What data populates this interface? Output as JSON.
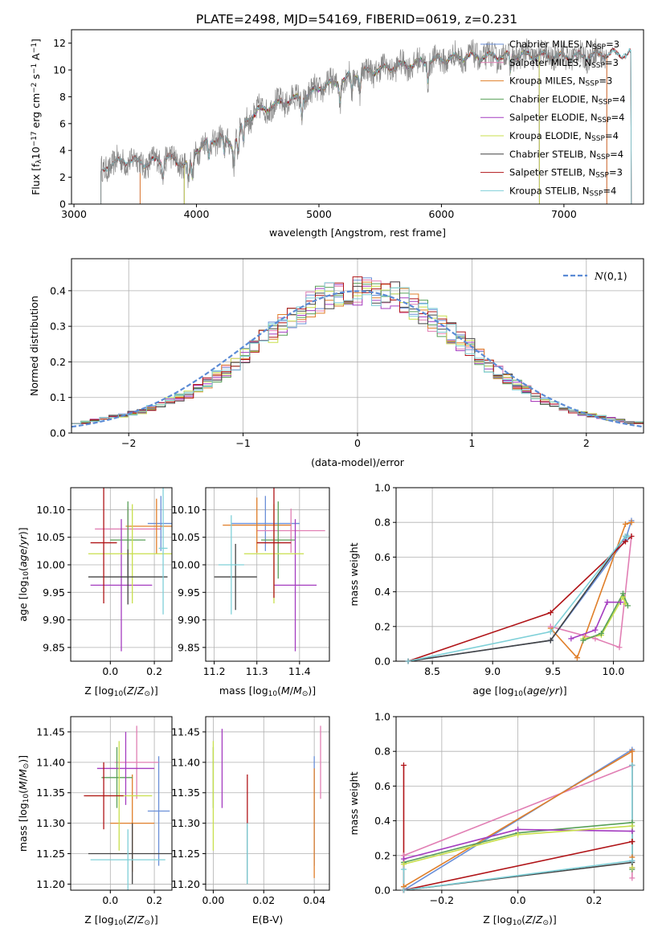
{
  "figure": {
    "title": "PLATE=2498, MJD=54169, FIBERID=0619, z=0.231",
    "colors": {
      "cha_miles": "#6a8fd8",
      "sal_miles": "#e17fb4",
      "kro_miles": "#e07f2a",
      "cha_elodie": "#58a058",
      "sal_elodie": "#a43cc0",
      "kro_elodie": "#c8df4c",
      "cha_stelib": "#444444",
      "sal_stelib": "#b01418",
      "kro_stelib": "#7fd0d8",
      "data": "#888888",
      "normal": "#5b8bd5",
      "grid": "#b0b0b0"
    }
  },
  "chart_data": [
    {
      "id": "spectrum",
      "type": "line",
      "title": "PLATE=2498, MJD=54169, FIBERID=0619, z=0.231",
      "xlabel": "wavelength [Angstrom, rest frame]",
      "ylabel_parts": [
        "Flux [f",
        "λ",
        "10",
        "−17",
        " erg cm",
        "−2",
        " s",
        "−1",
        " A",
        "−1",
        "]"
      ],
      "xlim": [
        2980,
        7650
      ],
      "ylim": [
        0,
        13
      ],
      "xticks": [
        3000,
        4000,
        5000,
        6000,
        7000
      ],
      "yticks": [
        0,
        2,
        4,
        6,
        8,
        10,
        12
      ],
      "grid": false,
      "legend_position": "right",
      "legend": [
        {
          "key": "cha_miles",
          "label": "Chabrier MILES, N",
          "n": "=3"
        },
        {
          "key": "sal_miles",
          "label": "Salpeter MILES, N",
          "n": "=3"
        },
        {
          "key": "kro_miles",
          "label": "Kroupa MILES, N",
          "n": "=3"
        },
        {
          "key": "cha_elodie",
          "label": "Chabrier ELODIE, N",
          "n": "=4"
        },
        {
          "key": "sal_elodie",
          "label": "Salpeter ELODIE, N",
          "n": "=4"
        },
        {
          "key": "kro_elodie",
          "label": "Kroupa ELODIE, N",
          "n": "=4"
        },
        {
          "key": "cha_stelib",
          "label": "Chabrier STELIB, N",
          "n": "=4"
        },
        {
          "key": "sal_stelib",
          "label": "Salpeter STELIB, N",
          "n": "=3"
        },
        {
          "key": "kro_stelib",
          "label": "Kroupa STELIB, N",
          "n": "=4"
        }
      ],
      "legend_sub": "SSP",
      "continuum": [
        [
          3220,
          2.3
        ],
        [
          3300,
          3.0
        ],
        [
          3450,
          3.3
        ],
        [
          3600,
          3.0
        ],
        [
          3750,
          3.5
        ],
        [
          3850,
          3.2
        ],
        [
          3950,
          2.8
        ],
        [
          4000,
          4.1
        ],
        [
          4100,
          4.6
        ],
        [
          4200,
          5.0
        ],
        [
          4300,
          4.4
        ],
        [
          4400,
          6.2
        ],
        [
          4500,
          6.9
        ],
        [
          4700,
          7.6
        ],
        [
          4900,
          8.0
        ],
        [
          5000,
          8.7
        ],
        [
          5200,
          9.2
        ],
        [
          5300,
          9.7
        ],
        [
          5400,
          9.9
        ],
        [
          5600,
          10.2
        ],
        [
          5800,
          10.5
        ],
        [
          6000,
          10.8
        ],
        [
          6200,
          11.0
        ],
        [
          6400,
          11.0
        ],
        [
          6600,
          11.1
        ],
        [
          6800,
          11.1
        ],
        [
          7000,
          11.0
        ],
        [
          7200,
          11.1
        ],
        [
          7350,
          11.2
        ]
      ],
      "model_ranges": {
        "cha_miles": [
          3540,
          7350
        ],
        "sal_miles": [
          3540,
          7350
        ],
        "kro_miles": [
          3540,
          7350
        ],
        "cha_elodie": [
          3900,
          6800
        ],
        "sal_elodie": [
          3900,
          6800
        ],
        "kro_elodie": [
          3900,
          6800
        ],
        "cha_stelib": [
          3220,
          7550
        ],
        "sal_stelib": [
          3220,
          7550
        ],
        "kro_stelib": [
          3220,
          7550
        ]
      }
    },
    {
      "id": "residuals",
      "type": "line",
      "xlabel": "(data-model)/error",
      "ylabel": "Normed distribution",
      "xlim": [
        -2.5,
        2.5
      ],
      "ylim": [
        0,
        0.49
      ],
      "xticks": [
        -2,
        -1,
        0,
        1,
        2
      ],
      "xtick_labels": [
        "−2",
        "−1",
        "0",
        "1",
        "2"
      ],
      "yticks": [
        0.0,
        0.1,
        0.2,
        0.3,
        0.4
      ],
      "ytick_labels": [
        "0.0",
        "0.1",
        "0.2",
        "0.3",
        "0.4"
      ],
      "grid": true,
      "legend_position": "top-right",
      "legend_label": "N(0,1)",
      "bin_width": 0.1,
      "hist_base": [
        0.03,
        0.03,
        0.035,
        0.04,
        0.045,
        0.05,
        0.055,
        0.06,
        0.07,
        0.08,
        0.09,
        0.1,
        0.11,
        0.125,
        0.14,
        0.16,
        0.175,
        0.195,
        0.215,
        0.24,
        0.265,
        0.285,
        0.305,
        0.325,
        0.345,
        0.36,
        0.375,
        0.385,
        0.39,
        0.395,
        0.4,
        0.4,
        0.395,
        0.39,
        0.385,
        0.37,
        0.355,
        0.34,
        0.32,
        0.3,
        0.28,
        0.26,
        0.24,
        0.215,
        0.19,
        0.17,
        0.155,
        0.135,
        0.12,
        0.1,
        0.09,
        0.08,
        0.07,
        0.06,
        0.055,
        0.05,
        0.045,
        0.04,
        0.035,
        0.03,
        0.03
      ],
      "hist_series": [
        "cha_miles",
        "sal_miles",
        "kro_miles",
        "cha_elodie",
        "sal_elodie",
        "kro_elodie",
        "cha_stelib",
        "sal_stelib",
        "kro_stelib"
      ]
    },
    {
      "id": "age_vs_Z",
      "type": "scatter",
      "xlabel": "Z [log10(Z/Z⊙)]",
      "ylabel": "age  [log10(age/yr)]",
      "xlim": [
        -0.18,
        0.28
      ],
      "ylim": [
        9.825,
        10.14
      ],
      "xticks": [
        0.0,
        0.2
      ],
      "xtick_labels": [
        "0.0",
        "0.2"
      ],
      "yticks": [
        9.85,
        9.9,
        9.95,
        10.0,
        10.05,
        10.1
      ],
      "ytick_labels": [
        "9.85",
        "9.90",
        "9.95",
        "10.00",
        "10.05",
        "10.10"
      ],
      "grid": true,
      "points": [
        {
          "key": "cha_miles",
          "x": 0.23,
          "xerr": 0.06,
          "y": 10.075,
          "yerr": 0.05
        },
        {
          "key": "sal_miles",
          "x": 0.08,
          "xerr": 0.15,
          "y": 10.065,
          "yerr": 0.04
        },
        {
          "key": "kro_miles",
          "x": 0.21,
          "xerr": 0.14,
          "y": 10.07,
          "yerr": 0.05
        },
        {
          "key": "cha_elodie",
          "x": 0.08,
          "xerr": 0.08,
          "y": 10.045,
          "yerr": 0.07
        },
        {
          "key": "sal_elodie",
          "x": 0.05,
          "xerr": 0.14,
          "y": 9.963,
          "yerr": 0.12
        },
        {
          "key": "kro_elodie",
          "x": 0.1,
          "xerr": 0.2,
          "y": 10.02,
          "yerr": 0.09
        },
        {
          "key": "cha_stelib",
          "x": 0.08,
          "xerr": 0.18,
          "y": 9.978,
          "yerr": 0.05
        },
        {
          "key": "sal_stelib",
          "x": -0.03,
          "xerr": 0.06,
          "y": 10.04,
          "yerr": 0.11
        },
        {
          "key": "kro_stelib",
          "x": 0.24,
          "xerr": 0.02,
          "y": 10.03,
          "yerr": 0.12
        }
      ]
    },
    {
      "id": "age_vs_mass",
      "type": "scatter",
      "xlabel": "mass [log10(M/M⊙)]",
      "ylabel": "",
      "xlim": [
        11.18,
        11.47
      ],
      "ylim": [
        9.825,
        10.14
      ],
      "xticks": [
        11.2,
        11.3,
        11.4
      ],
      "xtick_labels": [
        "11.2",
        "11.3",
        "11.4"
      ],
      "yticks": [
        9.85,
        9.9,
        9.95,
        10.0,
        10.05,
        10.1
      ],
      "ytick_labels": [
        "9.85",
        "9.90",
        "9.95",
        "10.00",
        "10.05",
        "10.10"
      ],
      "grid": true,
      "points": [
        {
          "key": "cha_miles",
          "x": 11.32,
          "xerr": 0.08,
          "y": 10.075,
          "yerr": 0.05
        },
        {
          "key": "sal_miles",
          "x": 11.38,
          "xerr": 0.08,
          "y": 10.062,
          "yerr": 0.04
        },
        {
          "key": "kro_miles",
          "x": 11.3,
          "xerr": 0.08,
          "y": 10.072,
          "yerr": 0.05
        },
        {
          "key": "cha_elodie",
          "x": 11.35,
          "xerr": 0.04,
          "y": 10.045,
          "yerr": 0.07
        },
        {
          "key": "sal_elodie",
          "x": 11.39,
          "xerr": 0.05,
          "y": 9.963,
          "yerr": 0.12
        },
        {
          "key": "kro_elodie",
          "x": 11.34,
          "xerr": 0.07,
          "y": 10.02,
          "yerr": 0.09
        },
        {
          "key": "cha_stelib",
          "x": 11.25,
          "xerr": 0.05,
          "y": 9.978,
          "yerr": 0.06
        },
        {
          "key": "sal_stelib",
          "x": 11.34,
          "xerr": 0.04,
          "y": 10.04,
          "yerr": 0.1
        },
        {
          "key": "kro_stelib",
          "x": 11.24,
          "xerr": 0.03,
          "y": 10.0,
          "yerr": 0.09
        }
      ]
    },
    {
      "id": "weight_vs_age",
      "type": "line",
      "xlabel": "age  [log10(age/yr)]",
      "ylabel": "mass weight",
      "xlim": [
        8.2,
        10.25
      ],
      "ylim": [
        0,
        1.0
      ],
      "xticks": [
        8.5,
        9.0,
        9.5,
        10.0
      ],
      "xtick_labels": [
        "8.5",
        "9.0",
        "9.5",
        "10.0"
      ],
      "yticks": [
        0,
        0.2,
        0.4,
        0.6,
        0.8,
        1.0
      ],
      "ytick_labels": [
        "0.0",
        "0.2",
        "0.4",
        "0.6",
        "0.8",
        "1.0"
      ],
      "grid": true,
      "series": [
        {
          "key": "cha_miles",
          "x": [
            8.3,
            9.48,
            10.1,
            10.15
          ],
          "y": [
            0.0,
            0.12,
            0.7,
            0.81
          ]
        },
        {
          "key": "kro_miles",
          "x": [
            9.48,
            9.7,
            10.1,
            10.15
          ],
          "y": [
            0.19,
            0.02,
            0.79,
            0.8
          ]
        },
        {
          "key": "sal_miles",
          "x": [
            9.48,
            9.85,
            10.05,
            10.15
          ],
          "y": [
            0.2,
            0.13,
            0.08,
            0.72
          ]
        },
        {
          "key": "sal_elodie",
          "x": [
            9.65,
            9.85,
            9.95,
            10.06
          ],
          "y": [
            0.13,
            0.18,
            0.34,
            0.34
          ]
        },
        {
          "key": "kro_elodie",
          "x": [
            9.75,
            9.9,
            10.08,
            10.1
          ],
          "y": [
            0.13,
            0.15,
            0.37,
            0.33
          ]
        },
        {
          "key": "cha_elodie",
          "x": [
            9.75,
            9.9,
            10.08,
            10.12
          ],
          "y": [
            0.12,
            0.16,
            0.39,
            0.32
          ]
        },
        {
          "key": "cha_stelib",
          "x": [
            8.3,
            9.48,
            10.1,
            10.12
          ],
          "y": [
            0.0,
            0.12,
            0.72,
            0.72
          ]
        },
        {
          "key": "sal_stelib",
          "x": [
            8.3,
            9.48,
            10.1,
            10.15
          ],
          "y": [
            0.0,
            0.28,
            0.69,
            0.72
          ]
        },
        {
          "key": "kro_stelib",
          "x": [
            8.3,
            9.48,
            10.1,
            10.12
          ],
          "y": [
            0.0,
            0.17,
            0.72,
            0.72
          ]
        }
      ]
    },
    {
      "id": "mass_vs_Z",
      "type": "scatter",
      "xlabel": "Z [log10(Z/Z⊙)]",
      "ylabel": "mass [log10(M/M⊙)]",
      "xlim": [
        -0.18,
        0.28
      ],
      "ylim": [
        11.19,
        11.475
      ],
      "xticks": [
        0.0,
        0.2
      ],
      "xtick_labels": [
        "0.0",
        "0.2"
      ],
      "yticks": [
        11.2,
        11.25,
        11.3,
        11.35,
        11.4,
        11.45
      ],
      "ytick_labels": [
        "11.20",
        "11.25",
        "11.30",
        "11.35",
        "11.40",
        "11.45"
      ],
      "grid": true,
      "points": [
        {
          "key": "cha_miles",
          "x": 0.22,
          "xerr": 0.05,
          "y": 11.32,
          "yerr": 0.09
        },
        {
          "key": "sal_miles",
          "x": 0.12,
          "xerr": 0.1,
          "y": 11.4,
          "yerr": 0.06
        },
        {
          "key": "kro_miles",
          "x": 0.1,
          "xerr": 0.1,
          "y": 11.3,
          "yerr": 0.08
        },
        {
          "key": "cha_elodie",
          "x": 0.03,
          "xerr": 0.07,
          "y": 11.375,
          "yerr": 0.05
        },
        {
          "key": "sal_elodie",
          "x": 0.07,
          "xerr": 0.13,
          "y": 11.39,
          "yerr": 0.06
        },
        {
          "key": "kro_elodie",
          "x": 0.04,
          "xerr": 0.15,
          "y": 11.345,
          "yerr": 0.09
        },
        {
          "key": "cha_stelib",
          "x": 0.1,
          "xerr": 0.2,
          "y": 11.25,
          "yerr": 0.05
        },
        {
          "key": "sal_stelib",
          "x": -0.03,
          "xerr": 0.09,
          "y": 11.345,
          "yerr": 0.055
        },
        {
          "key": "kro_stelib",
          "x": 0.08,
          "xerr": 0.17,
          "y": 11.24,
          "yerr": 0.05
        }
      ]
    },
    {
      "id": "mass_vs_ebv",
      "type": "scatter",
      "xlabel": "E(B-V)",
      "ylabel": "",
      "xlim": [
        -0.003,
        0.046
      ],
      "ylim": [
        11.19,
        11.475
      ],
      "xticks": [
        0.0,
        0.02,
        0.04
      ],
      "xtick_labels": [
        "0.00",
        "0.02",
        "0.04"
      ],
      "yticks": [
        11.2,
        11.25,
        11.3,
        11.35,
        11.4,
        11.45
      ],
      "ytick_labels": [
        "11.20",
        "11.25",
        "11.30",
        "11.35",
        "11.40",
        "11.45"
      ],
      "grid": true,
      "points": [
        {
          "key": "cha_miles",
          "x": 0.04,
          "xerr": 0,
          "y": 11.32,
          "yerr": 0.09
        },
        {
          "key": "sal_miles",
          "x": 0.0425,
          "xerr": 0,
          "y": 11.4,
          "yerr": 0.06
        },
        {
          "key": "kro_miles",
          "x": 0.04,
          "xerr": 0,
          "y": 11.3,
          "yerr": 0.09
        },
        {
          "key": "cha_elodie",
          "x": 0.0,
          "xerr": 0,
          "y": 11.375,
          "yerr": 0.05
        },
        {
          "key": "sal_elodie",
          "x": 0.0035,
          "xerr": 0,
          "y": 11.39,
          "yerr": 0.065
        },
        {
          "key": "kro_elodie",
          "x": 0.0,
          "xerr": 0,
          "y": 11.345,
          "yerr": 0.09
        },
        {
          "key": "cha_stelib",
          "x": 0.0135,
          "xerr": 0,
          "y": 11.25,
          "yerr": 0.05
        },
        {
          "key": "sal_stelib",
          "x": 0.0135,
          "xerr": 0,
          "y": 11.34,
          "yerr": 0.04
        },
        {
          "key": "kro_stelib",
          "x": 0.0135,
          "xerr": 0,
          "y": 11.25,
          "yerr": 0.05
        }
      ]
    },
    {
      "id": "weight_vs_Z",
      "type": "line",
      "xlabel": "Z [log10(Z/Z⊙)]",
      "ylabel": "mass weight",
      "xlim": [
        -0.32,
        0.33
      ],
      "ylim": [
        0,
        1.0
      ],
      "xticks": [
        -0.2,
        0.0,
        0.2
      ],
      "xtick_labels": [
        "−0.2",
        "0.0",
        "0.2"
      ],
      "yticks": [
        0,
        0.2,
        0.4,
        0.6,
        0.8,
        1.0
      ],
      "ytick_labels": [
        "0.0",
        "0.2",
        "0.4",
        "0.6",
        "0.8",
        "1.0"
      ],
      "grid": true,
      "series": [
        {
          "key": "cha_miles",
          "x": [
            -0.3,
            0.3,
            0.3
          ],
          "y": [
            0.0,
            0.81,
            0.17
          ]
        },
        {
          "key": "sal_miles",
          "x": [
            -0.3,
            0.3,
            0.3
          ],
          "y": [
            0.2,
            0.72,
            0.07
          ]
        },
        {
          "key": "kro_miles",
          "x": [
            -0.3,
            0.3,
            0.3
          ],
          "y": [
            0.02,
            0.8,
            0.19
          ]
        },
        {
          "key": "cha_elodie",
          "x": [
            -0.3,
            0.0,
            0.3,
            0.3
          ],
          "y": [
            0.16,
            0.33,
            0.39,
            0.12
          ]
        },
        {
          "key": "sal_elodie",
          "x": [
            -0.3,
            0.0,
            0.3,
            0.3
          ],
          "y": [
            0.18,
            0.35,
            0.34,
            0.13
          ]
        },
        {
          "key": "kro_elodie",
          "x": [
            -0.3,
            0.0,
            0.3,
            0.3
          ],
          "y": [
            0.15,
            0.32,
            0.37,
            0.13
          ]
        },
        {
          "key": "cha_stelib",
          "x": [
            -0.3,
            0.3,
            0.3
          ],
          "y": [
            0.0,
            0.16,
            0.72
          ]
        },
        {
          "key": "sal_stelib",
          "x": [
            -0.3,
            -0.3,
            -0.3,
            0.3,
            0.3
          ],
          "y": [
            0.72,
            0.0,
            0.0,
            0.28,
            0.28
          ]
        },
        {
          "key": "kro_stelib",
          "x": [
            -0.3,
            -0.3,
            0.3,
            0.3
          ],
          "y": [
            0.12,
            0.0,
            0.17,
            0.72
          ]
        }
      ]
    }
  ]
}
